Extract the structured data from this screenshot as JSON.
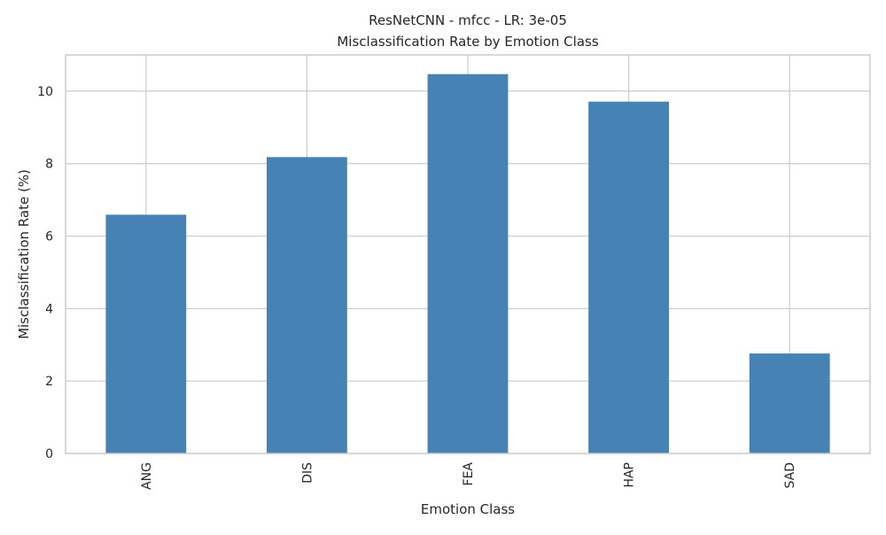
{
  "chart_data": {
    "type": "bar",
    "title": "ResNetCNN - mfcc - LR: 3e-05",
    "subtitle": "Misclassification Rate by Emotion Class",
    "xlabel": "Emotion Class",
    "ylabel": "Misclassification Rate (%)",
    "categories": [
      "ANG",
      "DIS",
      "FEA",
      "HAP",
      "SAD"
    ],
    "values": [
      6.59,
      8.18,
      10.47,
      9.71,
      2.76
    ],
    "ylim": [
      0,
      11
    ],
    "yticks": [
      0,
      2,
      4,
      6,
      8,
      10
    ],
    "grid": true,
    "legend": "none",
    "bar_color": "#4682b4",
    "grid_color": "#cccccc",
    "axes_color": "#cccccc"
  }
}
